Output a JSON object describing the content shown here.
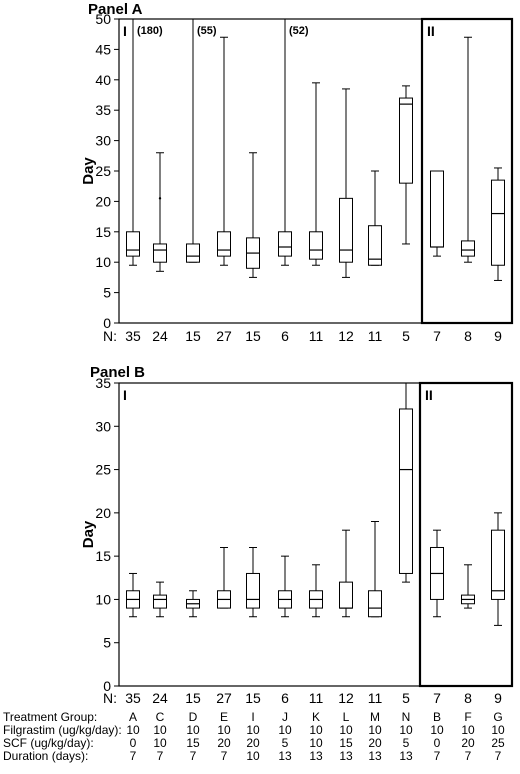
{
  "chart_data": [
    {
      "type": "boxplot",
      "title": "Panel A",
      "ylabel": "Day",
      "ylim": [
        0,
        50
      ],
      "yticks": [
        0,
        5,
        10,
        15,
        20,
        25,
        30,
        35,
        40,
        45,
        50
      ],
      "section_labels": [
        "I",
        "II"
      ],
      "n_prefix": "N:",
      "boxes": [
        {
          "n": "35",
          "min": 9.5,
          "q1": 11,
          "median": 12,
          "q3": 15,
          "max": 50,
          "note": "(180)"
        },
        {
          "n": "24",
          "min": 8.5,
          "q1": 10,
          "median": 12,
          "q3": 13,
          "max": 28,
          "outliers": [
            20.5
          ]
        },
        {
          "n": "15",
          "min": 10,
          "q1": 10,
          "median": 11,
          "q3": 13,
          "max": 50,
          "note": "(55)"
        },
        {
          "n": "27",
          "min": 9.5,
          "q1": 11,
          "median": 12,
          "q3": 15,
          "max": 47
        },
        {
          "n": "15",
          "min": 7.5,
          "q1": 9,
          "median": 11.5,
          "q3": 14,
          "max": 28
        },
        {
          "n": "6",
          "min": 9.5,
          "q1": 11,
          "median": 12.5,
          "q3": 15,
          "max": 50,
          "note": "(52)"
        },
        {
          "n": "11",
          "min": 9.5,
          "q1": 10.5,
          "median": 12,
          "q3": 15,
          "max": 39.5
        },
        {
          "n": "12",
          "min": 7.5,
          "q1": 10,
          "median": 12,
          "q3": 20.5,
          "max": 38.5
        },
        {
          "n": "11",
          "min": 9.5,
          "q1": 9.5,
          "median": 10.5,
          "q3": 16,
          "max": 25
        },
        {
          "n": "5",
          "min": 13,
          "q1": 23,
          "median": 36,
          "q3": 37,
          "max": 39
        },
        {
          "n": "7",
          "min": 11,
          "q1": 12.5,
          "median": 12.5,
          "q3": 25,
          "max": 25
        },
        {
          "n": "8",
          "min": 10,
          "q1": 11,
          "median": 12,
          "q3": 13.5,
          "max": 47
        },
        {
          "n": "9",
          "min": 7,
          "q1": 9.5,
          "median": 18,
          "q3": 23.5,
          "max": 25.5
        }
      ]
    },
    {
      "type": "boxplot",
      "title": "Panel B",
      "ylabel": "Day",
      "ylim": [
        0,
        35
      ],
      "yticks": [
        0,
        5,
        10,
        15,
        20,
        25,
        30,
        35
      ],
      "section_labels": [
        "I",
        "II"
      ],
      "n_prefix": "N:",
      "boxes": [
        {
          "n": "35",
          "min": 8,
          "q1": 9,
          "median": 10,
          "q3": 11,
          "max": 13
        },
        {
          "n": "24",
          "min": 8,
          "q1": 9,
          "median": 10,
          "q3": 10.5,
          "max": 12
        },
        {
          "n": "15",
          "min": 8,
          "q1": 9,
          "median": 9.5,
          "q3": 10,
          "max": 11
        },
        {
          "n": "27",
          "min": 9,
          "q1": 9,
          "median": 10,
          "q3": 11,
          "max": 16
        },
        {
          "n": "15",
          "min": 8,
          "q1": 9,
          "median": 10,
          "q3": 13,
          "max": 16
        },
        {
          "n": "6",
          "min": 8,
          "q1": 9,
          "median": 10,
          "q3": 11,
          "max": 15
        },
        {
          "n": "11",
          "min": 8,
          "q1": 9,
          "median": 10,
          "q3": 11,
          "max": 14
        },
        {
          "n": "12",
          "min": 8,
          "q1": 9,
          "median": 9,
          "q3": 12,
          "max": 18
        },
        {
          "n": "11",
          "min": 8,
          "q1": 8,
          "median": 9,
          "q3": 11,
          "max": 19
        },
        {
          "n": "5",
          "min": 12,
          "q1": 13,
          "median": 25,
          "q3": 32,
          "max": 35
        },
        {
          "n": "7",
          "min": 8,
          "q1": 10,
          "median": 13,
          "q3": 16,
          "max": 18
        },
        {
          "n": "8",
          "min": 9,
          "q1": 9.5,
          "median": 10,
          "q3": 10.5,
          "max": 14
        },
        {
          "n": "9",
          "min": 7,
          "q1": 10,
          "median": 11,
          "q3": 18,
          "max": 20
        }
      ]
    }
  ],
  "footer": {
    "labels": [
      "Treatment Group:",
      "Filgrastim (ug/kg/day):",
      "SCF (ug/kg/day):",
      "Duration (days):"
    ],
    "columns": [
      [
        "A",
        "10",
        "0",
        "7"
      ],
      [
        "C",
        "10",
        "10",
        "7"
      ],
      [
        "D",
        "10",
        "15",
        "7"
      ],
      [
        "E",
        "10",
        "20",
        "7"
      ],
      [
        "I",
        "10",
        "20",
        "10"
      ],
      [
        "J",
        "10",
        "5",
        "13"
      ],
      [
        "K",
        "10",
        "10",
        "13"
      ],
      [
        "L",
        "10",
        "15",
        "13"
      ],
      [
        "M",
        "10",
        "20",
        "13"
      ],
      [
        "N",
        "10",
        "5",
        "13"
      ],
      [
        "B",
        "10",
        "0",
        "7"
      ],
      [
        "F",
        "10",
        "20",
        "7"
      ],
      [
        "G",
        "10",
        "25",
        "7"
      ]
    ]
  }
}
